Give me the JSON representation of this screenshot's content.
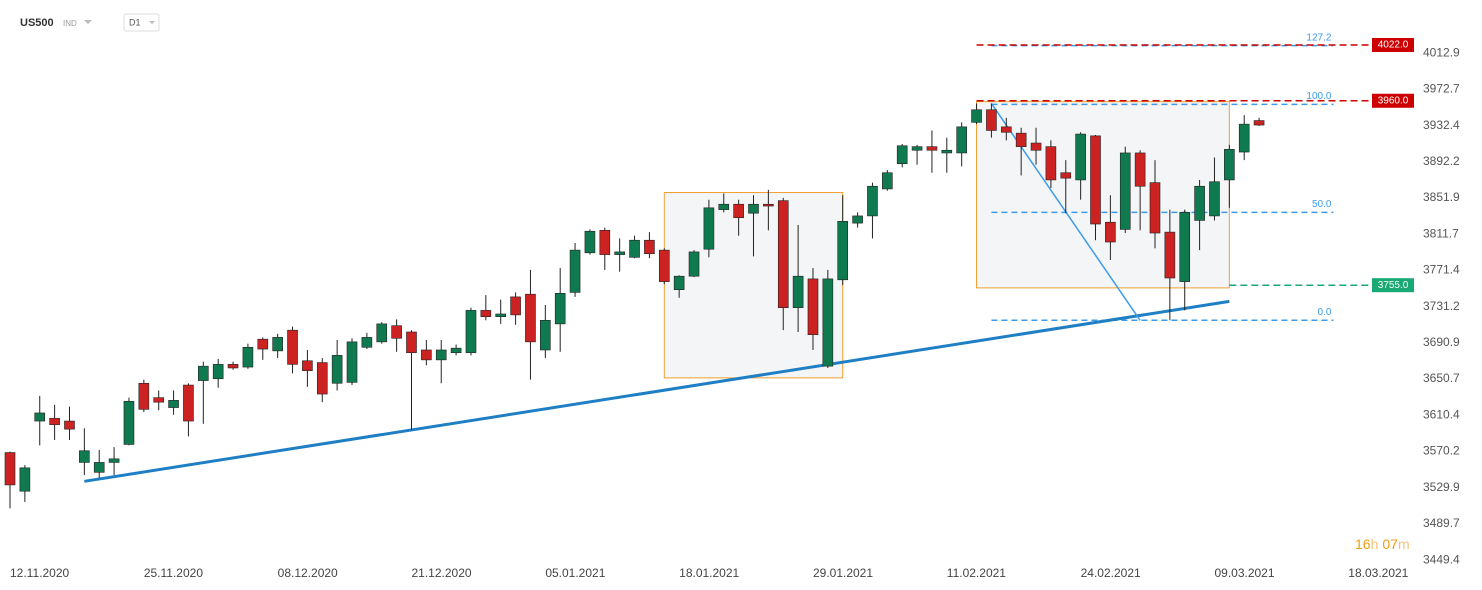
{
  "header": {
    "symbol": "US500",
    "market": "IND",
    "interval": "D1"
  },
  "countdown": {
    "hours": "16",
    "hours_unit": "h",
    "minutes": "07",
    "minutes_unit": "m"
  },
  "chart_data": {
    "type": "candlestick",
    "categories": [
      "12.11.2020",
      null,
      null,
      null,
      null,
      null,
      null,
      null,
      null,
      "25.11.2020",
      null,
      null,
      null,
      null,
      null,
      null,
      null,
      null,
      "08.12.2020",
      null,
      null,
      null,
      null,
      null,
      null,
      null,
      null,
      "21.12.2020",
      null,
      null,
      null,
      null,
      null,
      null,
      null,
      null,
      "05.01.2021",
      null,
      null,
      null,
      null,
      null,
      null,
      null,
      null,
      "18.01.2021",
      null,
      null,
      null,
      null,
      null,
      null,
      null,
      null,
      "29.01.2021",
      null,
      null,
      null,
      null,
      null,
      null,
      null,
      null,
      "11.02.2021",
      null,
      null,
      null,
      null,
      null,
      null,
      null,
      null,
      "24.02.2021",
      null,
      null,
      null,
      null,
      null,
      null,
      null,
      null,
      "09.03.2021",
      null,
      null,
      null,
      null,
      null,
      null,
      null,
      null,
      "18.03.2021"
    ],
    "open": [
      3569,
      3526,
      3604,
      3607,
      3604,
      3558,
      3547,
      3558,
      3578,
      3646,
      3630,
      3619,
      3644,
      3649,
      3651,
      3667,
      3664,
      3695,
      3682,
      3705,
      3671,
      3669,
      3646,
      3647,
      3686,
      3692,
      3710,
      3703,
      3683,
      3672,
      3680,
      3680,
      3727,
      3720,
      3742,
      3745,
      3683,
      3712,
      3747,
      3791,
      3816,
      3789,
      3786,
      3805,
      3794,
      3750,
      3765,
      3795,
      3839,
      3845,
      3835,
      3845,
      3849,
      3730,
      3762,
      3665,
      3761,
      3824,
      3832,
      3862,
      3890,
      3905,
      3909,
      3902,
      3902,
      3936,
      3950,
      3931,
      3924,
      3913,
      3909,
      3880,
      3872,
      3921,
      3825,
      3817,
      3902,
      3869,
      3814,
      3759,
      3827,
      3832,
      3872,
      3903,
      3938,
      null,
      null,
      null,
      null,
      null,
      null
    ],
    "high": [
      3570,
      3555,
      3632,
      3622,
      3620,
      3596,
      3572,
      3575,
      3630,
      3650,
      3638,
      3638,
      3646,
      3670,
      3673,
      3670,
      3690,
      3697,
      3701,
      3709,
      3683,
      3674,
      3694,
      3696,
      3702,
      3714,
      3717,
      3705,
      3694,
      3694,
      3689,
      3730,
      3744,
      3739,
      3747,
      3772,
      3733,
      3774,
      3802,
      3817,
      3819,
      3807,
      3810,
      3814,
      3796,
      3766,
      3794,
      3850,
      3857,
      3850,
      3855,
      3861,
      3852,
      3822,
      3774,
      3772,
      3855,
      3836,
      3869,
      3883,
      3912,
      3911,
      3927,
      3919,
      3936,
      3957,
      3957,
      3941,
      3930,
      3930,
      3916,
      3894,
      3925,
      3922,
      3855,
      3909,
      3905,
      3894,
      3839,
      3839,
      3872,
      3897,
      3911,
      3944,
      3941,
      null,
      null,
      null,
      null,
      null,
      null
    ],
    "low": [
      3507,
      3514,
      3577,
      3583,
      3583,
      3544,
      3541,
      3544,
      3577,
      3614,
      3616,
      3611,
      3587,
      3601,
      3641,
      3661,
      3662,
      3672,
      3674,
      3657,
      3642,
      3625,
      3638,
      3644,
      3684,
      3690,
      3681,
      3594,
      3666,
      3646,
      3677,
      3677,
      3716,
      3712,
      3711,
      3650,
      3674,
      3681,
      3742,
      3789,
      3772,
      3770,
      3785,
      3785,
      3756,
      3741,
      3764,
      3786,
      3836,
      3810,
      3787,
      3816,
      3705,
      3703,
      3683,
      3663,
      3755,
      3819,
      3807,
      3860,
      3886,
      3889,
      3880,
      3880,
      3887,
      3934,
      3919,
      3916,
      3877,
      3889,
      3863,
      3835,
      3850,
      3805,
      3783,
      3813,
      3816,
      3796,
      3716,
      3727,
      3794,
      3827,
      3841,
      3894,
      3932,
      null,
      null,
      null,
      null,
      null,
      null
    ],
    "close": [
      3533,
      3552,
      3613,
      3600,
      3595,
      3571,
      3558,
      3562,
      3626,
      3617,
      3625,
      3627,
      3604,
      3665,
      3667,
      3663,
      3686,
      3684,
      3697,
      3667,
      3660,
      3634,
      3677,
      3692,
      3697,
      3712,
      3696,
      3680,
      3672,
      3683,
      3685,
      3727,
      3720,
      3723,
      3722,
      3692,
      3716,
      3746,
      3794,
      3815,
      3789,
      3792,
      3805,
      3790,
      3759,
      3765,
      3792,
      3841,
      3845,
      3830,
      3845,
      3843,
      3730,
      3765,
      3700,
      3762,
      3826,
      3832,
      3865,
      3880,
      3910,
      3909,
      3905,
      3905,
      3931,
      3950,
      3927,
      3925,
      3909,
      3905,
      3872,
      3874,
      3923,
      3823,
      3803,
      3902,
      3865,
      3813,
      3763,
      3836,
      3865,
      3870,
      3906,
      3934,
      3933,
      null,
      null,
      null,
      null,
      null,
      null
    ],
    "up_color": "#0f7a4f",
    "down_color": "#cc2222",
    "ylim": [
      3444,
      4072
    ],
    "yticks": [
      4012.9,
      3972.7,
      3932.4,
      3892.2,
      3851.9,
      3811.7,
      3771.4,
      3731.2,
      3690.9,
      3650.7,
      3610.4,
      3570.2,
      3529.9,
      3489.7,
      3449.4
    ],
    "levels": [
      {
        "value": 4022,
        "label": "4022.0",
        "color": "#cc0000",
        "start": 65
      },
      {
        "value": 3960,
        "label": "3960.0",
        "color": "#cc0000",
        "start": 65
      },
      {
        "value": 3755,
        "label": "3755.0",
        "color": "#1aa874",
        "start": 82
      }
    ],
    "fibonacci": {
      "low": 3716,
      "high": 3956,
      "x": [
        66,
        89
      ],
      "color": "#3d9be9",
      "levels": [
        {
          "value": 127.2,
          "label": "127.2"
        },
        {
          "value": 100,
          "label": "100.0"
        },
        {
          "value": 50,
          "label": "50.0"
        },
        {
          "value": 0,
          "label": "0.0"
        }
      ]
    },
    "rectangles": [
      {
        "x": [
          44,
          56
        ],
        "y": [
          3652,
          3858
        ]
      },
      {
        "x": [
          65,
          82
        ],
        "y": [
          3752,
          3959
        ]
      }
    ],
    "trendlines": [
      {
        "x": [
          5,
          82
        ],
        "y": [
          3537,
          3737
        ],
        "color": "#1f7fc4",
        "width": 3
      },
      {
        "x": [
          66,
          76
        ],
        "y": [
          3957,
          3716
        ],
        "color": "#3d9be9",
        "width": 1.5
      }
    ]
  }
}
